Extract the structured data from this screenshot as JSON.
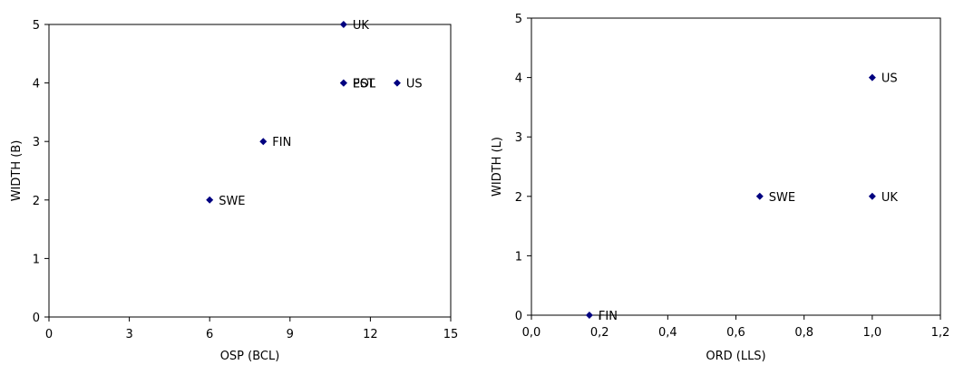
{
  "chart_data": [
    {
      "type": "scatter",
      "title": "",
      "xlabel": "OSP (BCL)",
      "ylabel": "WIDTH (B)",
      "xlim": [
        0,
        15
      ],
      "ylim": [
        0,
        5
      ],
      "x_ticks": [
        "0",
        "3",
        "6",
        "9",
        "12",
        "15"
      ],
      "y_ticks": [
        "0",
        "1",
        "2",
        "3",
        "4",
        "5"
      ],
      "grid": false,
      "marker_color": "#000080",
      "points": [
        {
          "label": "UK",
          "x": 11,
          "y": 5
        },
        {
          "label": "EST",
          "x": 11,
          "y": 4
        },
        {
          "label": "POL",
          "x": 11,
          "y": 4
        },
        {
          "label": "US",
          "x": 13,
          "y": 4
        },
        {
          "label": "FIN",
          "x": 8,
          "y": 3
        },
        {
          "label": "SWE",
          "x": 6,
          "y": 2
        }
      ]
    },
    {
      "type": "scatter",
      "title": "",
      "xlabel": "ORD (LLS)",
      "ylabel": "WIDTH (L)",
      "xlim": [
        0,
        1.2
      ],
      "ylim": [
        0,
        5
      ],
      "x_ticks": [
        "0,0",
        "0,2",
        "0,4",
        "0,6",
        "0,8",
        "1,0",
        "1,2"
      ],
      "y_ticks": [
        "0",
        "1",
        "2",
        "3",
        "4",
        "5"
      ],
      "grid": false,
      "marker_color": "#000080",
      "points": [
        {
          "label": "US",
          "x": 1.0,
          "y": 4
        },
        {
          "label": "SWE",
          "x": 0.67,
          "y": 2
        },
        {
          "label": "UK",
          "x": 1.0,
          "y": 2
        },
        {
          "label": "FIN",
          "x": 0.17,
          "y": 0
        }
      ]
    }
  ]
}
